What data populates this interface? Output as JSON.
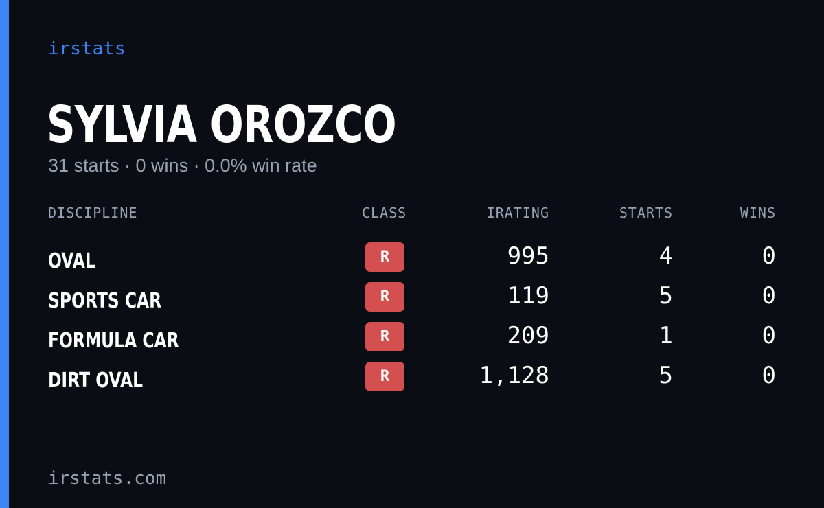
{
  "brand": "irstats",
  "driver": {
    "name": "SYLVIA OROZCO",
    "summary": "31 starts · 0 wins · 0.0% win rate"
  },
  "table": {
    "headers": {
      "discipline": "DISCIPLINE",
      "class": "CLASS",
      "irating": "IRATING",
      "starts": "STARTS",
      "wins": "WINS"
    },
    "rows": [
      {
        "discipline": "OVAL",
        "class": "R",
        "irating": "995",
        "starts": "4",
        "wins": "0"
      },
      {
        "discipline": "SPORTS CAR",
        "class": "R",
        "irating": "119",
        "starts": "5",
        "wins": "0"
      },
      {
        "discipline": "FORMULA CAR",
        "class": "R",
        "irating": "209",
        "starts": "1",
        "wins": "0"
      },
      {
        "discipline": "DIRT OVAL",
        "class": "R",
        "irating": "1,128",
        "starts": "5",
        "wins": "0"
      }
    ]
  },
  "footer": "irstats.com",
  "colors": {
    "accent": "#3d85f5",
    "background": "#0a0d14",
    "class_badge": "#d44f4f",
    "muted_text": "#99a1b2"
  }
}
